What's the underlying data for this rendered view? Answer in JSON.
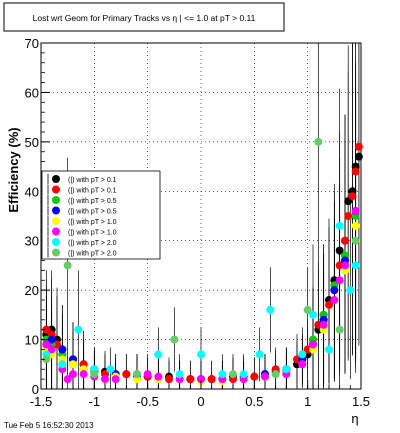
{
  "footer": {
    "timestamp": "Tue Feb  5 16:52:30 2013"
  },
  "chart_data": {
    "type": "scatter",
    "title": "Lost wrt Geom for Primary Tracks vs η | <= 1.0 at pT > 0.11",
    "xlabel": "η",
    "ylabel": "Efficiency (%)",
    "xlim": [
      -1.5,
      1.5
    ],
    "ylim": [
      0,
      70
    ],
    "grid": true,
    "legend_position": "left",
    "x_ticks": [
      "-1.5",
      "-1",
      "-0.5",
      "0",
      "0.5",
      "1",
      "1.5"
    ],
    "y_ticks": [
      "0",
      "10",
      "20",
      "30",
      "40",
      "50",
      "60",
      "70"
    ],
    "series": [
      {
        "name": "(|) with pT > 0.1",
        "color": "#000000",
        "x": [
          -1.45,
          -1.4,
          -1.35,
          -1.3,
          -1.2,
          -1.1,
          -1.0,
          -0.9,
          -0.7,
          -0.5,
          -0.3,
          -0.1,
          0.1,
          0.3,
          0.5,
          0.6,
          0.7,
          0.8,
          0.9,
          1.0,
          1.05,
          1.1,
          1.15,
          1.2,
          1.25,
          1.3,
          1.35,
          1.38,
          1.42,
          1.45,
          1.48
        ],
        "y": [
          11,
          12,
          10,
          8,
          6,
          5,
          4,
          3.5,
          3,
          2.5,
          2.5,
          2,
          2,
          2.5,
          2.5,
          3,
          3.5,
          4,
          5,
          7,
          9,
          12,
          14,
          18,
          22,
          28,
          30,
          38,
          40,
          45,
          47
        ]
      },
      {
        "name": "(|) with pT > 0.1",
        "color": "#ff0000",
        "x": [
          -1.45,
          -1.4,
          -1.35,
          -1.3,
          -1.2,
          -1.1,
          -1.0,
          -0.9,
          -0.7,
          -0.5,
          -0.3,
          -0.1,
          0.1,
          0.3,
          0.5,
          0.6,
          0.7,
          0.8,
          0.9,
          1.0,
          1.05,
          1.1,
          1.15,
          1.2,
          1.25,
          1.3,
          1.35,
          1.38,
          1.42,
          1.45,
          1.48
        ],
        "y": [
          12,
          11,
          9,
          7,
          5,
          5,
          4,
          3,
          3,
          2.5,
          2,
          2,
          2,
          2,
          2.5,
          3,
          4,
          4,
          6,
          8,
          10,
          13,
          15,
          17,
          20,
          25,
          30,
          35,
          39,
          44,
          49
        ]
      },
      {
        "name": "(|) with pT > 0.5",
        "color": "#00cc00",
        "x": [
          -1.45,
          -1.4,
          -1.3,
          -1.2,
          -1.1,
          -1.0,
          -0.8,
          -0.6,
          -0.4,
          -0.2,
          0.0,
          0.2,
          0.4,
          0.6,
          0.8,
          0.95,
          1.05,
          1.15,
          1.25,
          1.35,
          1.45
        ],
        "y": [
          10,
          9,
          7,
          5,
          4,
          3.5,
          3,
          2.5,
          2,
          2,
          2,
          2,
          2,
          2.5,
          3.5,
          6,
          10,
          15,
          21,
          27,
          35
        ]
      },
      {
        "name": "(|) with pT > 0.5",
        "color": "#0000ff",
        "x": [
          -1.45,
          -1.4,
          -1.3,
          -1.2,
          -1.1,
          -1.0,
          -0.8,
          -0.6,
          -0.4,
          -0.2,
          0.0,
          0.2,
          0.4,
          0.6,
          0.8,
          0.95,
          1.05,
          1.15,
          1.25,
          1.35,
          1.45
        ],
        "y": [
          9,
          10,
          8,
          6,
          4,
          3.5,
          3,
          2.5,
          2,
          2,
          2,
          2,
          2.5,
          3,
          4,
          6,
          9,
          14,
          20,
          26,
          36
        ]
      },
      {
        "name": "(|) with pT > 1.0",
        "color": "#ffff00",
        "x": [
          -1.45,
          -1.4,
          -1.3,
          -1.2,
          -1.1,
          -1.0,
          -0.8,
          -0.6,
          -0.4,
          -0.2,
          0.0,
          0.2,
          0.4,
          0.6,
          0.8,
          0.95,
          1.05,
          1.15,
          1.25,
          1.35,
          1.45
        ],
        "y": [
          8,
          7,
          6,
          5,
          4,
          3,
          2.5,
          2,
          2,
          2,
          1.5,
          1.5,
          2,
          2.5,
          3,
          5,
          8,
          12,
          18,
          24,
          33
        ]
      },
      {
        "name": "(|) with pT > 1.0",
        "color": "#ff00ff",
        "x": [
          -1.45,
          -1.4,
          -1.3,
          -1.25,
          -1.2,
          -1.1,
          -1.0,
          -0.9,
          -0.8,
          -0.6,
          -0.5,
          -0.4,
          -0.2,
          0.0,
          0.2,
          0.4,
          0.6,
          0.8,
          0.95,
          1.05,
          1.15,
          1.25,
          1.3,
          1.35,
          1.45
        ],
        "y": [
          9,
          8,
          4,
          2,
          3,
          3,
          2.5,
          2,
          2,
          3,
          3,
          2.5,
          2,
          2,
          2,
          2,
          2.5,
          3,
          5,
          9,
          13,
          18,
          22,
          25,
          36
        ]
      },
      {
        "name": "(|) with pT > 2.0",
        "color": "#00ffff",
        "x": [
          -1.45,
          -1.3,
          -1.15,
          -1.0,
          -0.85,
          -0.6,
          -0.4,
          -0.2,
          0.0,
          0.2,
          0.4,
          0.55,
          0.65,
          0.8,
          0.95,
          1.05,
          1.2,
          1.3,
          1.4,
          1.45
        ],
        "y": [
          7,
          5,
          12,
          4,
          4,
          3,
          7,
          3,
          7,
          3,
          3,
          7,
          16,
          4,
          7,
          15,
          8,
          33,
          20,
          25
        ]
      },
      {
        "name": "(|) with pT > 2.0",
        "color": "#66cc66",
        "x": [
          -1.45,
          -1.25,
          -1.0,
          -0.6,
          -0.25,
          0.3,
          0.7,
          1.0,
          1.1,
          1.3,
          1.45
        ],
        "y": [
          6,
          25,
          3,
          3,
          10,
          3,
          3,
          16,
          50,
          12,
          30
        ]
      }
    ]
  }
}
